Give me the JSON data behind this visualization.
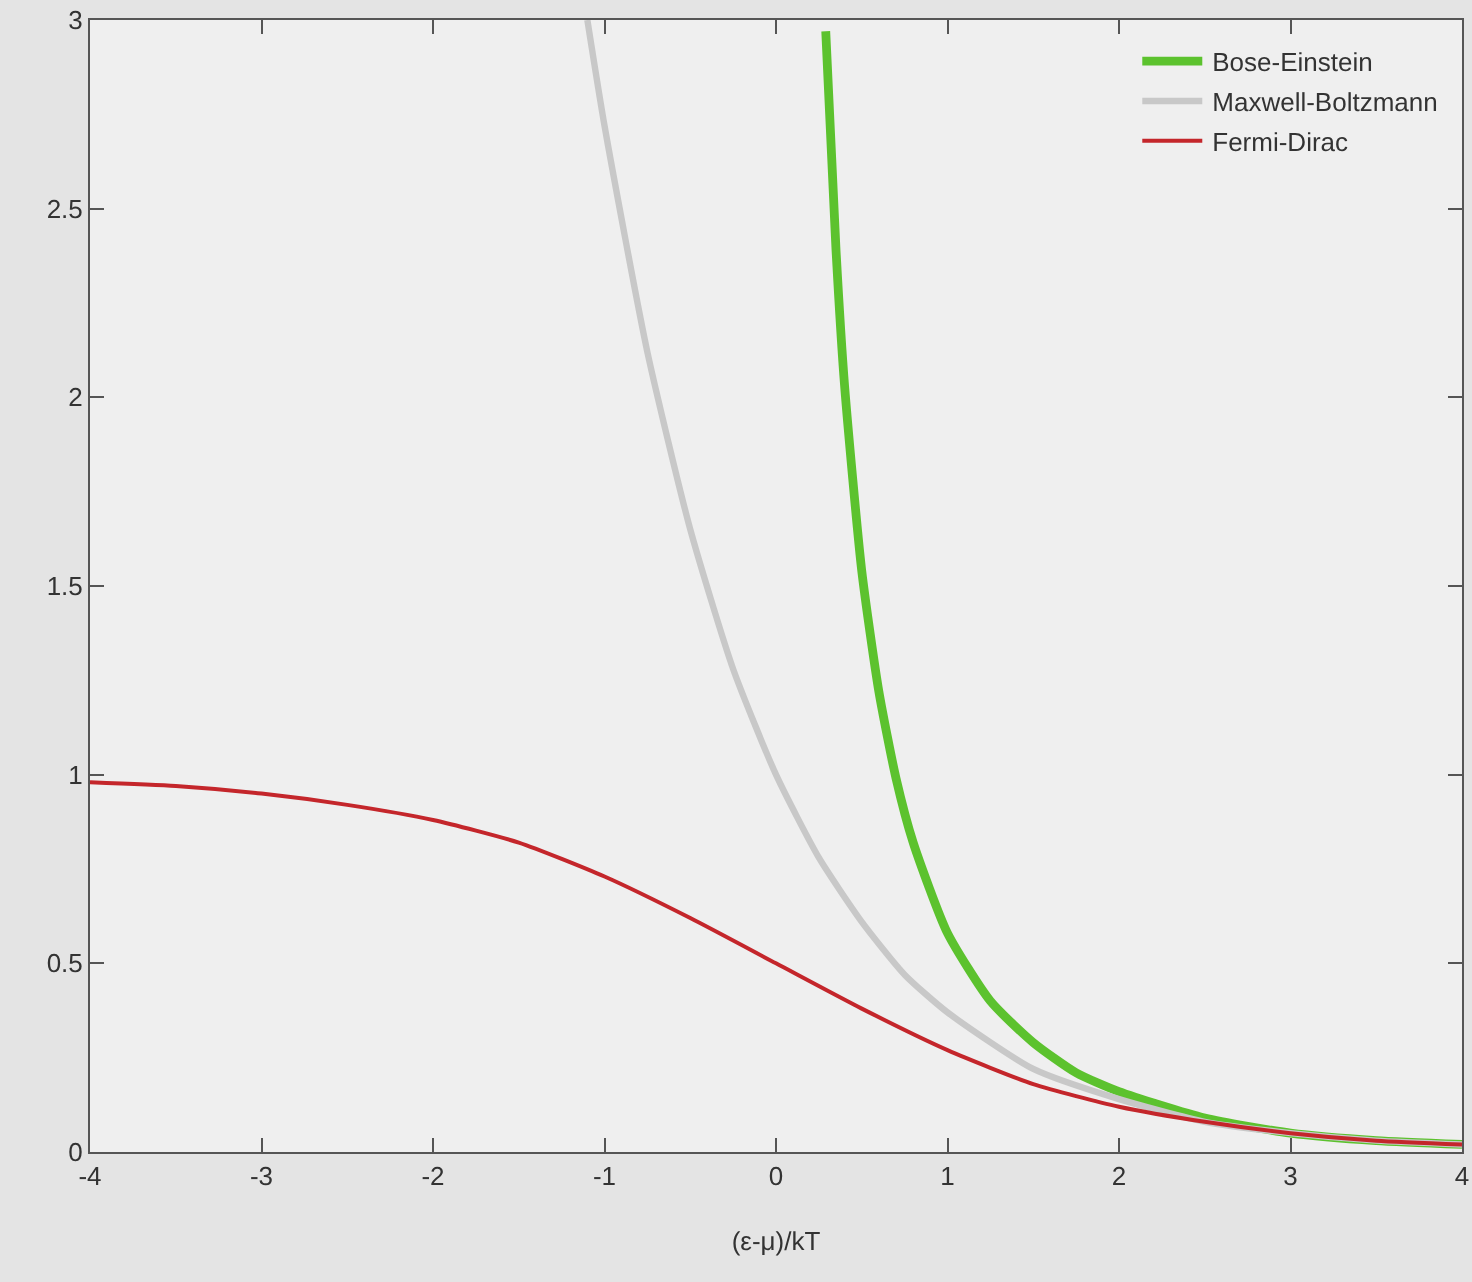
{
  "chart_data": {
    "type": "line",
    "xlabel": "(ε-μ)/kT",
    "xlim": [
      -4,
      4
    ],
    "xticks": [
      -4,
      -3,
      -2,
      -1,
      0,
      1,
      2,
      3,
      4
    ],
    "ylim": [
      0,
      3
    ],
    "yticks": [
      0,
      0.5,
      1,
      1.5,
      2,
      2.5,
      3
    ],
    "grid": false,
    "legend": "top right",
    "marker": "none",
    "line_style": "solid",
    "series": [
      {
        "name": "Bose-Einstein",
        "color": "#5cc22e",
        "x": [
          0.29,
          0.35,
          0.4,
          0.5,
          0.6,
          0.7,
          0.8,
          1,
          1.25,
          1.5,
          1.75,
          2,
          2.5,
          3,
          3.5,
          4
        ],
        "values": [
          2.97,
          2.39,
          2.03,
          1.54,
          1.22,
          0.99,
          0.82,
          0.58,
          0.4,
          0.29,
          0.21,
          0.16,
          0.09,
          0.05,
          0.03,
          0.02
        ]
      },
      {
        "name": "Maxwell-Boltzmann",
        "color": "#c8c8c8",
        "x": [
          -1.1,
          -1,
          -0.75,
          -0.5,
          -0.25,
          0,
          0.25,
          0.5,
          0.75,
          1,
          1.5,
          2,
          2.5,
          3,
          3.5,
          4
        ],
        "values": [
          3.0,
          2.72,
          2.12,
          1.65,
          1.28,
          1,
          0.78,
          0.61,
          0.47,
          0.37,
          0.22,
          0.14,
          0.08,
          0.05,
          0.03,
          0.02
        ]
      },
      {
        "name": "Fermi-Dirac",
        "color": "#c4262b",
        "x": [
          -4,
          -3.5,
          -3,
          -2.5,
          -2,
          -1.5,
          -1,
          -0.5,
          0,
          0.5,
          1,
          1.5,
          2,
          2.5,
          3,
          3.5,
          4
        ],
        "values": [
          0.98,
          0.97,
          0.95,
          0.92,
          0.88,
          0.82,
          0.73,
          0.62,
          0.5,
          0.38,
          0.27,
          0.18,
          0.12,
          0.08,
          0.05,
          0.03,
          0.02
        ]
      }
    ]
  }
}
